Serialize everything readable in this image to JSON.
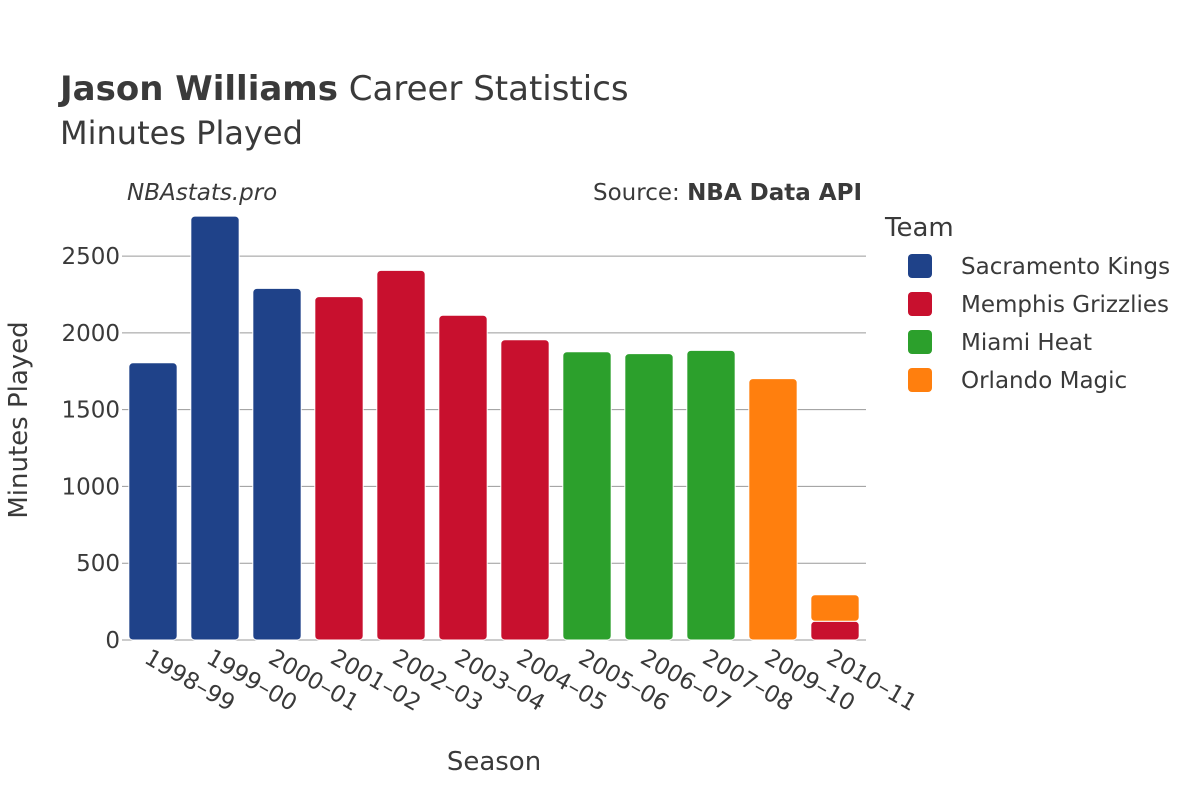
{
  "chart_data": {
    "type": "bar",
    "barmode": "stack",
    "title_bold": "Jason Williams",
    "title_rest": " Career Statistics",
    "subtitle": "Minutes Played",
    "watermark": "NBAstats.pro",
    "source_label": "Source: ",
    "source_value": "NBA Data API",
    "xlabel": "Season",
    "ylabel": "Minutes Played",
    "ylim": [
      0,
      2800
    ],
    "yticks": [
      0,
      500,
      1000,
      1500,
      2000,
      2500
    ],
    "grid": true,
    "legend_title": "Team",
    "legend_position": "right",
    "categories": [
      "1998–99",
      "1999–00",
      "2000–01",
      "2001–02",
      "2002–03",
      "2003–04",
      "2004–05",
      "2005–06",
      "2006–07",
      "2007–08",
      "2009–10",
      "2010–11"
    ],
    "series": [
      {
        "name": "Sacramento Kings",
        "color": "#1f4289",
        "values": [
          1805,
          2760,
          2290,
          0,
          0,
          0,
          0,
          0,
          0,
          0,
          0,
          0
        ]
      },
      {
        "name": "Memphis Grizzlies",
        "color": "#c8102e",
        "values": [
          0,
          0,
          0,
          2236,
          2407,
          2115,
          1955,
          0,
          0,
          0,
          0,
          122
        ]
      },
      {
        "name": "Miami Heat",
        "color": "#2ca02c",
        "values": [
          0,
          0,
          0,
          0,
          0,
          0,
          0,
          1877,
          1865,
          1886,
          0,
          0
        ]
      },
      {
        "name": "Orlando Magic",
        "color": "#ff7f0e",
        "values": [
          0,
          0,
          0,
          0,
          0,
          0,
          0,
          0,
          0,
          0,
          1702,
          173
        ]
      }
    ]
  }
}
